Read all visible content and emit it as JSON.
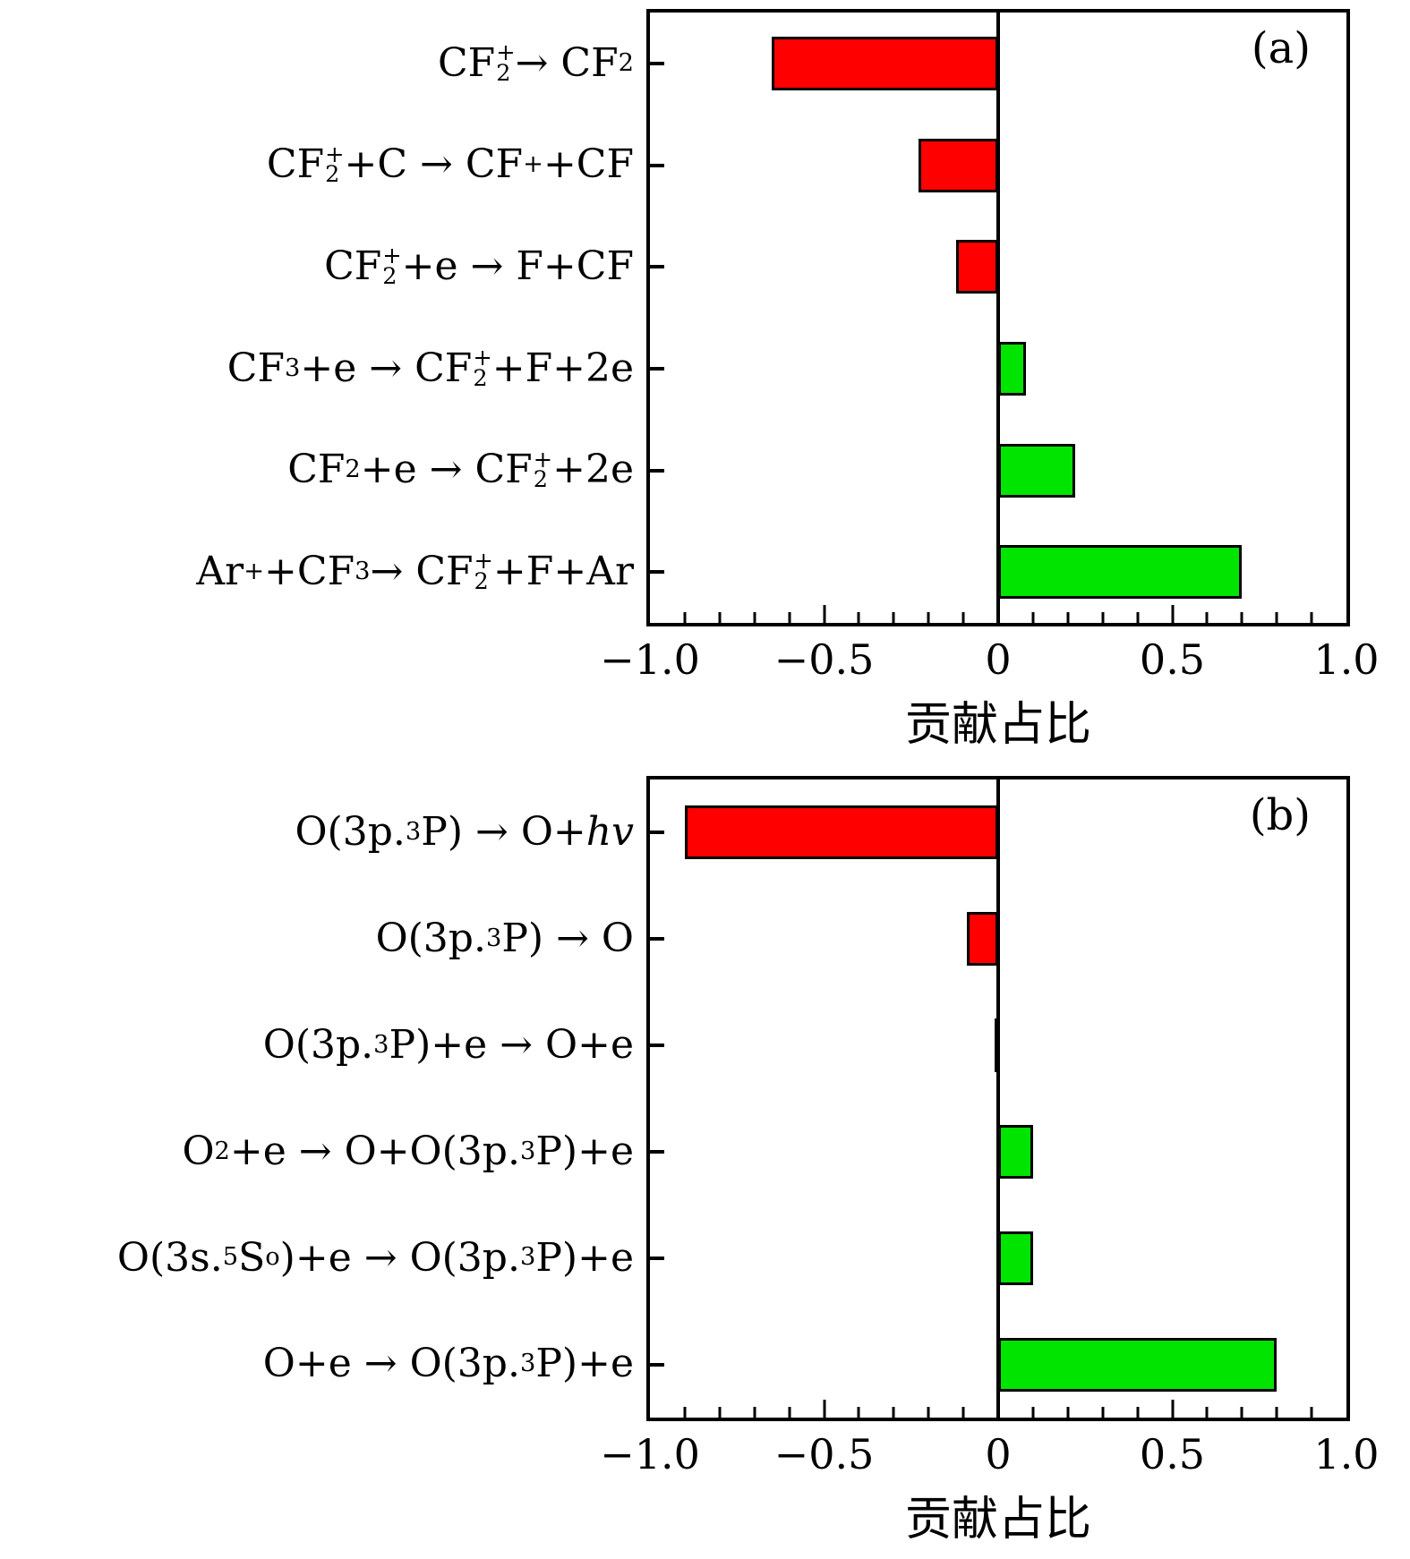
{
  "figure": {
    "background": "#ffffff",
    "xlabel": "贡献占比"
  },
  "chart_data": [
    {
      "type": "bar",
      "orientation": "horizontal",
      "panel_label": "(a)",
      "categories": [
        "CF₂⁺ → CF₂",
        "CF₂⁺+C → CF⁺+CF",
        "CF₂⁺+e → F+CF",
        "CF₃+e → CF₂⁺+F+2e",
        "CF₂+e → CF₂⁺+2e",
        "Ar⁺+CF₃ → CF₂⁺+F+Ar"
      ],
      "categories_html": [
        "CF<x-ss><x-u>+</x-u><x-l>2</x-l></x-ss> → CF<sub>2</sub>",
        "CF<x-ss><x-u>+</x-u><x-l>2</x-l></x-ss>+C → CF<sup>+</sup>+CF",
        "CF<x-ss><x-u>+</x-u><x-l>2</x-l></x-ss>+e → F+CF",
        "CF<sub>3</sub>+e → CF<x-ss><x-u>+</x-u><x-l>2</x-l></x-ss>+F+2e",
        "CF<sub>2</sub>+e → CF<x-ss><x-u>+</x-u><x-l>2</x-l></x-ss>+2e",
        "Ar<sup>+</sup>+CF<sub>3</sub> → CF<x-ss><x-u>+</x-u><x-l>2</x-l></x-ss>+F+Ar"
      ],
      "values": [
        -0.65,
        -0.23,
        -0.12,
        0.08,
        0.22,
        0.7
      ],
      "xlabel": "贡献占比",
      "xlim": [
        -1.0,
        1.0
      ],
      "xticks": [
        -1.0,
        -0.5,
        0,
        0.5,
        1.0
      ],
      "xtick_labels": [
        "−1.0",
        "−0.5",
        "0",
        "0.5",
        "1.0"
      ],
      "minor_tick_step": 0.1,
      "grid": false,
      "colors": {
        "positive": "#00e400",
        "negative": "#ff0000",
        "edge": "#000000"
      }
    },
    {
      "type": "bar",
      "orientation": "horizontal",
      "panel_label": "(b)",
      "categories": [
        "O(3p.³P) → O+hv",
        "O(3p.³P) → O",
        "O(3p.³P)+e → O+e",
        "O₂+e → O+O(3p.³P)+e",
        "O(3s.⁵S°)+e → O(3p.³P)+e",
        "O+e → O(3p.³P)+e"
      ],
      "categories_html": [
        "O(3p.<sup>3</sup>P) → O+<i>hv</i>",
        "O(3p.<sup>3</sup>P) → O",
        "O(3p.<sup>3</sup>P)+e → O+e",
        "O<sub>2</sub>+e → O+O(3p.<sup>3</sup>P)+e",
        "O(3s.<sup>5</sup>S<sup>o</sup>)+e → O(3p.<sup>3</sup>P)+e",
        "O+e → O(3p.<sup>3</sup>P)+e"
      ],
      "values": [
        -0.9,
        -0.09,
        -0.01,
        0.1,
        0.1,
        0.8
      ],
      "xlabel": "贡献占比",
      "xlim": [
        -1.0,
        1.0
      ],
      "xticks": [
        -1.0,
        -0.5,
        0,
        0.5,
        1.0
      ],
      "xtick_labels": [
        "−1.0",
        "−0.5",
        "0",
        "0.5",
        "1.0"
      ],
      "minor_tick_step": 0.1,
      "grid": false,
      "colors": {
        "positive": "#00e400",
        "negative": "#ff0000",
        "edge": "#000000"
      }
    }
  ]
}
